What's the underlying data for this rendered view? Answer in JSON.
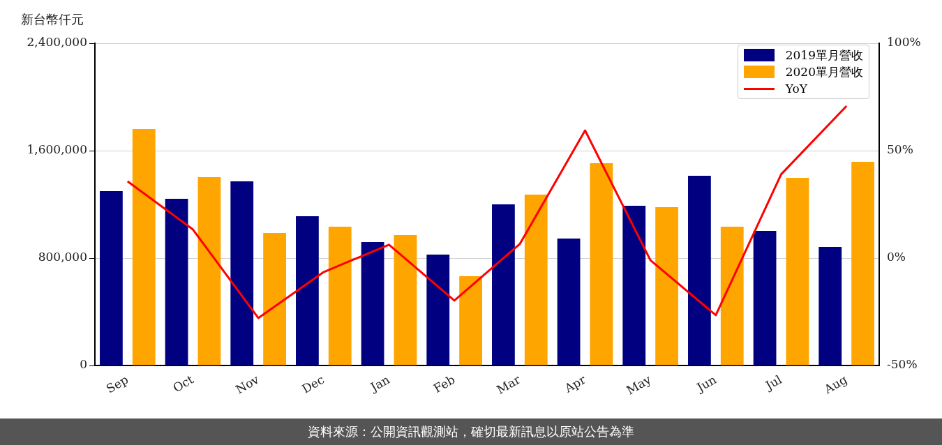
{
  "chart_data": {
    "type": "bar",
    "ylabel": "新台幣仟元",
    "categories": [
      "Sep",
      "Oct",
      "Nov",
      "Dec",
      "Jan",
      "Feb",
      "Mar",
      "Apr",
      "May",
      "Jun",
      "Jul",
      "Aug"
    ],
    "series": [
      {
        "name": "2019單月營收",
        "color": "#000080",
        "values": [
          1299000,
          1242000,
          1371000,
          1112000,
          919000,
          826000,
          1200000,
          945000,
          1190000,
          1413000,
          1003000,
          883000
        ]
      },
      {
        "name": "2020單月營收",
        "color": "#ffa500",
        "values": [
          1761000,
          1403000,
          987000,
          1034000,
          971000,
          665000,
          1273000,
          1506000,
          1179000,
          1034000,
          1397000,
          1517000
        ]
      },
      {
        "name": "YoY",
        "color": "#ff0000",
        "type": "line",
        "axis": "y2",
        "values": [
          35.7,
          13.3,
          -27.9,
          -6.5,
          6.2,
          -19.8,
          6.5,
          59.4,
          -1,
          -26.6,
          39,
          70.8
        ]
      }
    ],
    "ylim": [
      0,
      2400000
    ],
    "yticks": [
      {
        "value": 0,
        "label": "0"
      },
      {
        "value": 800000,
        "label": "800,000"
      },
      {
        "value": 1600000,
        "label": "1,600,000"
      },
      {
        "value": 2400000,
        "label": "2,400,000"
      }
    ],
    "y2lim": [
      -50,
      100
    ],
    "y2ticks": [
      {
        "value": -50,
        "label": "-50%"
      },
      {
        "value": 0,
        "label": "0%"
      },
      {
        "value": 50,
        "label": "50%"
      },
      {
        "value": 100,
        "label": "100%"
      }
    ],
    "grid": "y",
    "legend": "top right",
    "marker": "none",
    "line_style": "solid",
    "annotations": [
      "資料來源：公開資訊觀測站，確切最新訊息以原站公告為準"
    ]
  }
}
